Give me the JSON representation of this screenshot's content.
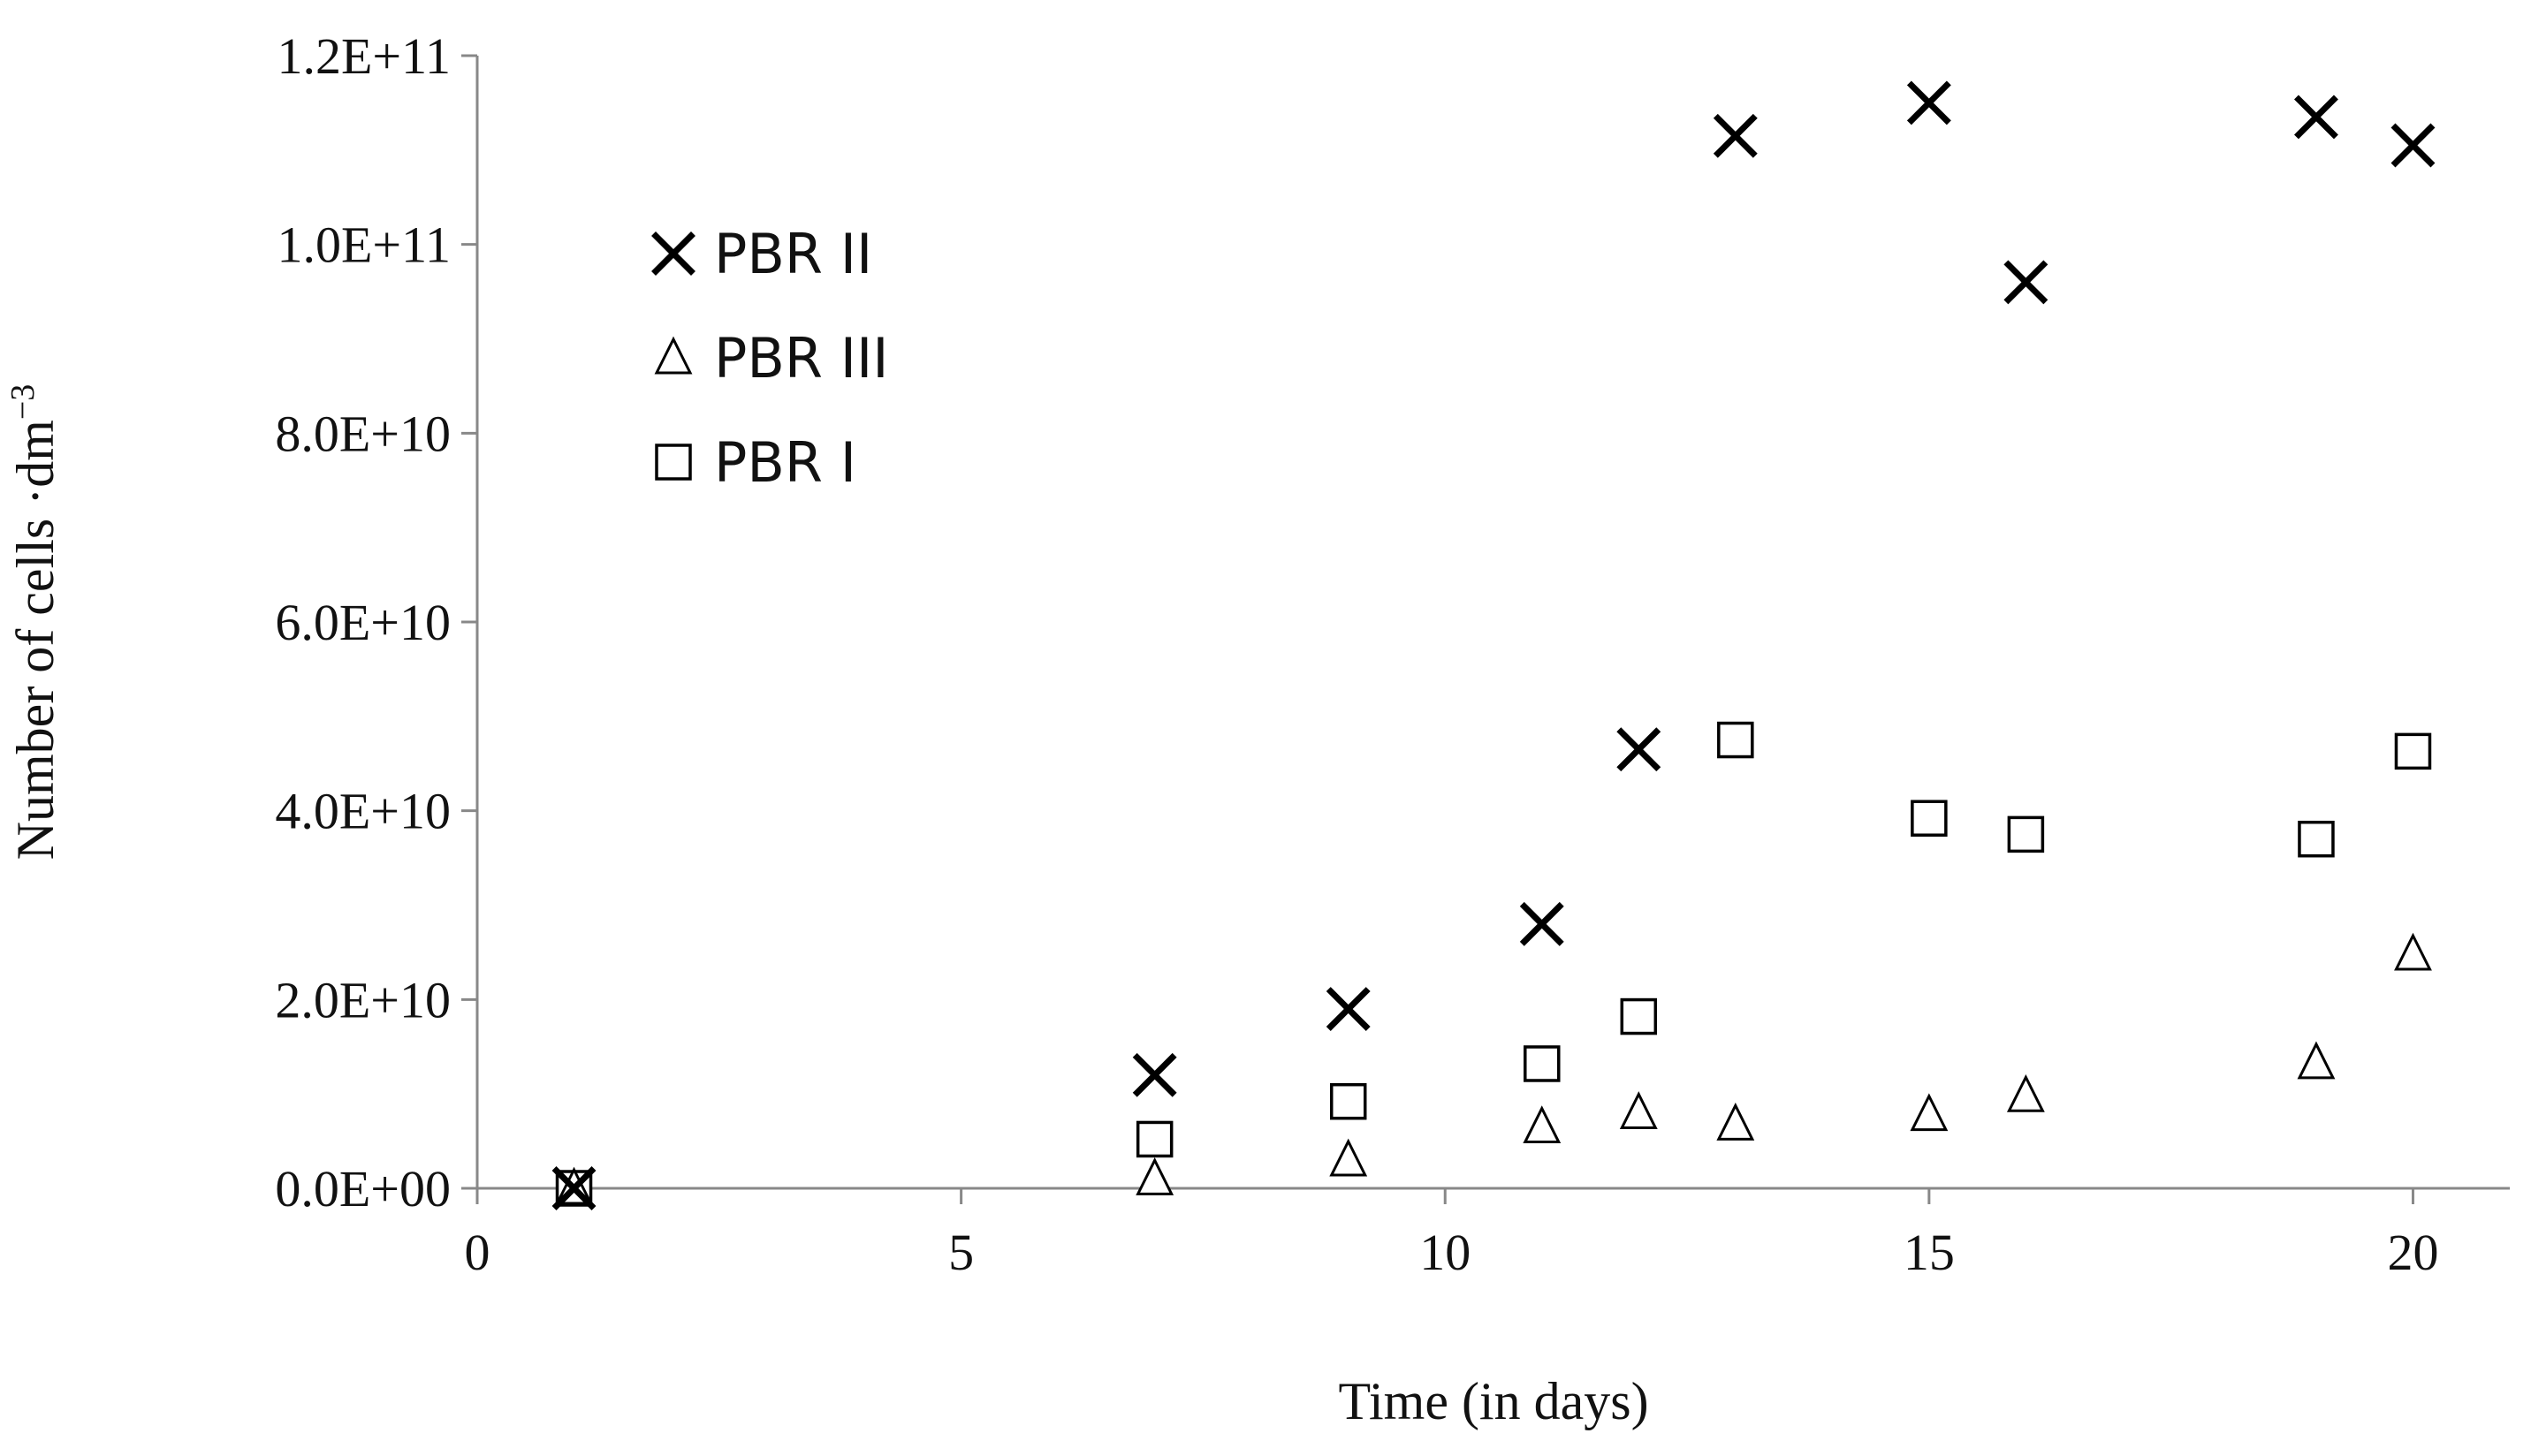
{
  "chart_data": {
    "type": "scatter",
    "title": "",
    "xlabel": "Time (in days)",
    "ylabel_main": "Number of cells ·dm",
    "ylabel_sup": "−3",
    "xlim": [
      0,
      21
    ],
    "ylim": [
      0,
      120000000000
    ],
    "x_ticks": [
      0,
      5,
      10,
      15,
      20
    ],
    "x_tick_labels": [
      "0",
      "5",
      "10",
      "15",
      "20"
    ],
    "y_ticks": [
      0,
      20000000000,
      40000000000,
      60000000000,
      80000000000,
      100000000000,
      120000000000
    ],
    "y_tick_labels": [
      "0.0E+00",
      "2.0E+10",
      "4.0E+10",
      "6.0E+10",
      "8.0E+10",
      "1.0E+11",
      "1.2E+11"
    ],
    "grid": false,
    "legend_position": "top-left",
    "series": [
      {
        "name": "PBR II",
        "marker": "x",
        "color": "#000000",
        "points": [
          {
            "x": 1,
            "y": 0
          },
          {
            "x": 7,
            "y": 12000000000
          },
          {
            "x": 9,
            "y": 19000000000
          },
          {
            "x": 11,
            "y": 28000000000
          },
          {
            "x": 12,
            "y": 46500000000
          },
          {
            "x": 13,
            "y": 111500000000
          },
          {
            "x": 15,
            "y": 115000000000
          },
          {
            "x": 16,
            "y": 96000000000
          },
          {
            "x": 19,
            "y": 113500000000
          },
          {
            "x": 20,
            "y": 110500000000
          }
        ]
      },
      {
        "name": "PBR III",
        "marker": "triangle",
        "color": "#000000",
        "points": [
          {
            "x": 1,
            "y": 0
          },
          {
            "x": 7,
            "y": 1000000000
          },
          {
            "x": 9,
            "y": 3000000000
          },
          {
            "x": 11,
            "y": 6500000000
          },
          {
            "x": 12,
            "y": 8000000000
          },
          {
            "x": 13,
            "y": 6800000000
          },
          {
            "x": 15,
            "y": 7800000000
          },
          {
            "x": 16,
            "y": 9800000000
          },
          {
            "x": 19,
            "y": 13300000000
          },
          {
            "x": 20,
            "y": 24800000000
          }
        ]
      },
      {
        "name": "PBR I",
        "marker": "square",
        "color": "#000000",
        "points": [
          {
            "x": 1,
            "y": 0
          },
          {
            "x": 7,
            "y": 5200000000
          },
          {
            "x": 9,
            "y": 9200000000
          },
          {
            "x": 11,
            "y": 13200000000
          },
          {
            "x": 12,
            "y": 18200000000
          },
          {
            "x": 13,
            "y": 47500000000
          },
          {
            "x": 15,
            "y": 39200000000
          },
          {
            "x": 16,
            "y": 37500000000
          },
          {
            "x": 19,
            "y": 37000000000
          },
          {
            "x": 20,
            "y": 46300000000
          }
        ]
      }
    ]
  }
}
